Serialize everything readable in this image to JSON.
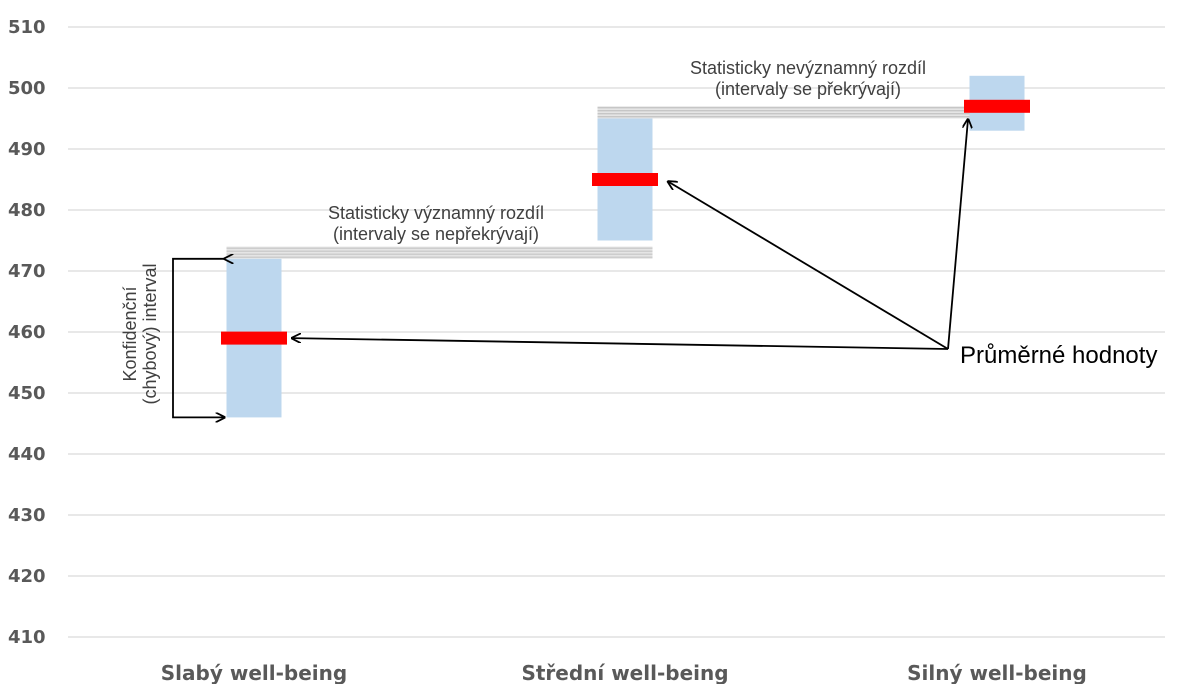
{
  "chart_data": {
    "type": "bar",
    "title": "",
    "xlabel": "",
    "ylabel": "",
    "ylim": [
      410,
      510
    ],
    "yticks": [
      410,
      420,
      430,
      440,
      450,
      460,
      470,
      480,
      490,
      500,
      510
    ],
    "grid": true,
    "categories": [
      "Slabý well-being",
      "Střední well-being",
      "Silný well-being"
    ],
    "means": [
      459,
      485,
      497
    ],
    "ci_low": [
      446,
      475,
      493
    ],
    "ci_high": [
      472,
      495,
      502
    ],
    "colors": {
      "mean_bar": "#ff0000",
      "ci_band": "#bdd7ee",
      "difference_band": "#d0d0d0",
      "axis_text": "#595959",
      "grid": "#d9d9d9"
    },
    "annotations": {
      "significant_line1": "Statisticky významný rozdíl",
      "significant_line2": "(intervaly se nepřekrývají)",
      "nonsignificant_line1": "Statisticky nevýznamný rozdíl",
      "nonsignificant_line2": "(intervaly se překrývají)",
      "ci_label_line1": "Konfidenční",
      "ci_label_line2": "(chybový) interval",
      "means_label": "Průměrné hodnoty"
    }
  }
}
